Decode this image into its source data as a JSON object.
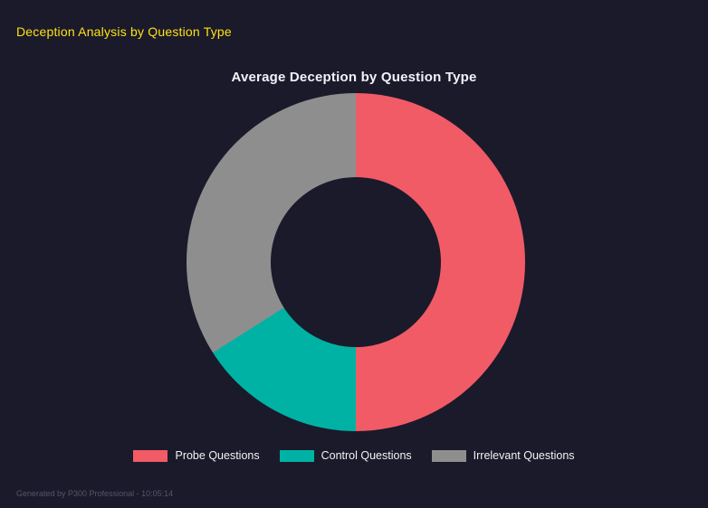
{
  "page": {
    "title": "Deception Analysis by Question Type",
    "footer": "Generated by P300 Professional - 10:05:14"
  },
  "chart_data": {
    "type": "pie",
    "subtype": "donut",
    "title": "Average Deception by Question Type",
    "categories": [
      "Probe Questions",
      "Control Questions",
      "Irrelevant Questions"
    ],
    "values": [
      50,
      16,
      34
    ],
    "colors": [
      "#f15b66",
      "#00b2a4",
      "#8e8e8e"
    ],
    "start_angle_deg": 0,
    "direction": "clockwise",
    "inner_radius_ratio": 0.5,
    "legend_position": "bottom",
    "background": "#1a1a2b"
  }
}
